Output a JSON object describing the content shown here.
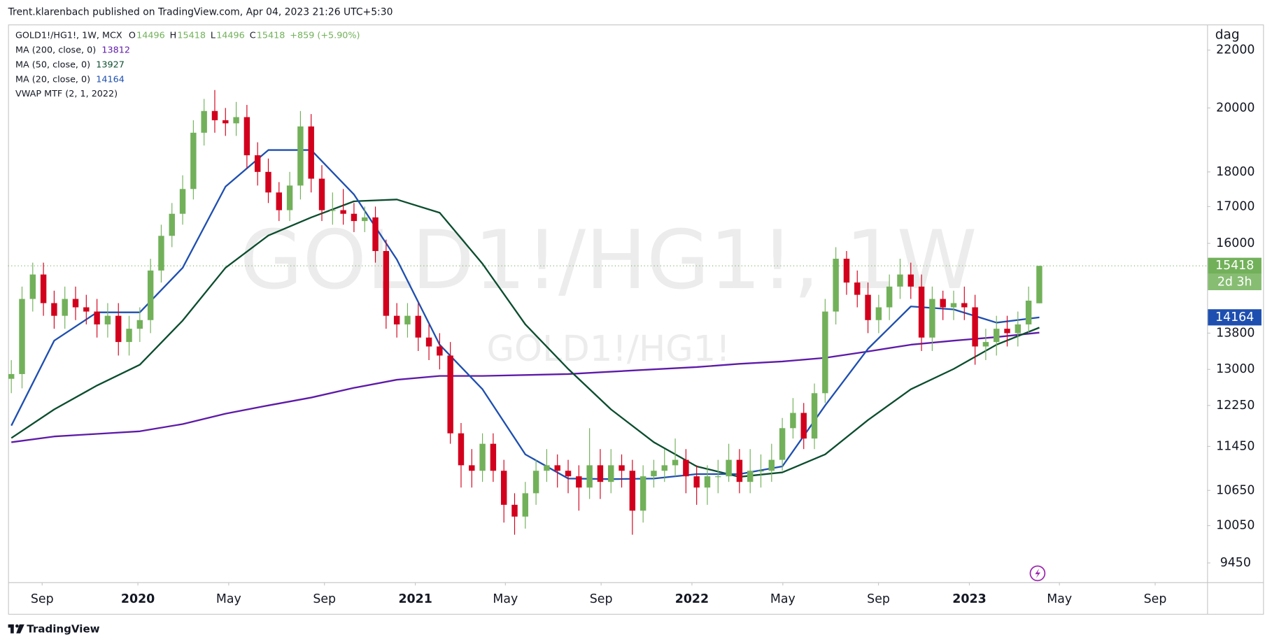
{
  "header": {
    "publisher": "Trent.klarenbach published on TradingView.com, Apr 04, 2023 21:26 UTC+5:30"
  },
  "footer": {
    "brand": "TradingView"
  },
  "chart_data": {
    "type": "candlestick",
    "symbol": "GOLD1!/HG1!, 1W, MCX",
    "watermark": "GOLD1!/HG1!, 1W",
    "watermark_sub": "GOLD1!/HG1!",
    "ohlc_labels": [
      "O",
      "H",
      "L",
      "C"
    ],
    "change": "+859 (+5.90%)",
    "indicator": "VWAP MTF (2, 1, 2022)",
    "countdown": "2d 3h",
    "price_axis_label": "dag",
    "log_scale": true,
    "up_color": "#72b15a",
    "down_color": "#d2001c",
    "xlim": [
      -0.3,
      111.67
    ],
    "ylim": [
      9154,
      22950
    ],
    "yticks": [
      22000,
      20000,
      18000,
      17000,
      16000,
      13800,
      13000,
      12250,
      11450,
      10650,
      10050,
      9450
    ],
    "xticks": [
      {
        "value": 2.88,
        "label": "Sep"
      },
      {
        "value": 11.82,
        "label": "2020"
      },
      {
        "value": 20.3,
        "label": "May"
      },
      {
        "value": 29.24,
        "label": "Sep"
      },
      {
        "value": 37.73,
        "label": "2021"
      },
      {
        "value": 46.14,
        "label": "May"
      },
      {
        "value": 55.08,
        "label": "Sep"
      },
      {
        "value": 63.56,
        "label": "2022"
      },
      {
        "value": 72.05,
        "label": "May"
      },
      {
        "value": 80.98,
        "label": "Sep"
      },
      {
        "value": 89.47,
        "label": "2023"
      },
      {
        "value": 97.88,
        "label": "May"
      },
      {
        "value": 106.82,
        "label": "Sep"
      }
    ],
    "open": [
      12800,
      12900,
      14600,
      15200,
      14500,
      14200,
      14600,
      14400,
      14300,
      14000,
      14200,
      13600,
      13900,
      14100,
      15300,
      16200,
      16800,
      17500,
      19200,
      19900,
      19600,
      19500,
      19700,
      18500,
      18000,
      17400,
      16900,
      17600,
      19400,
      17800,
      16900,
      16900,
      16800,
      16600,
      16700,
      15800,
      14200,
      14000,
      14200,
      13700,
      13500,
      13300,
      11700,
      11100,
      11000,
      11500,
      11000,
      10400,
      10200,
      10600,
      11000,
      11100,
      11000,
      10900,
      10700,
      11100,
      10800,
      11100,
      11000,
      10300,
      10900,
      11000,
      11100,
      11200,
      10900,
      10700,
      10900,
      10900,
      11200,
      10800,
      11000,
      11000,
      11200,
      11800,
      12100,
      11600,
      12500,
      14300,
      15600,
      15000,
      14700,
      14100,
      14400,
      14900,
      15200,
      14900,
      13700,
      14600,
      14400,
      14500,
      14400,
      13500,
      13600,
      13900,
      13800,
      14000,
      14496
    ],
    "high": [
      13200,
      14900,
      15500,
      15500,
      14800,
      14900,
      14900,
      14700,
      14600,
      14500,
      14500,
      14200,
      14400,
      15600,
      16500,
      17100,
      17900,
      19600,
      20300,
      20600,
      20000,
      20200,
      20100,
      18900,
      18400,
      17700,
      18000,
      19900,
      19800,
      18200,
      17400,
      17500,
      17100,
      17000,
      17000,
      16100,
      14500,
      14500,
      14500,
      14000,
      13800,
      13600,
      11900,
      11400,
      11700,
      11700,
      11200,
      10600,
      10800,
      11200,
      11400,
      11300,
      11200,
      11100,
      11800,
      11400,
      11400,
      11300,
      11200,
      11100,
      11200,
      11400,
      11600,
      11400,
      11100,
      11100,
      11200,
      11500,
      11400,
      11400,
      11300,
      11500,
      12000,
      12400,
      12300,
      12700,
      14600,
      15900,
      15800,
      15300,
      15000,
      14700,
      15200,
      15600,
      15500,
      15200,
      14900,
      14800,
      14800,
      14900,
      14700,
      13900,
      14200,
      14200,
      14300,
      14900,
      15418
    ],
    "low": [
      12500,
      12600,
      14300,
      14200,
      13900,
      13900,
      14100,
      14000,
      13700,
      13700,
      13300,
      13300,
      13600,
      13800,
      15000,
      15900,
      16500,
      17200,
      18800,
      19200,
      19100,
      19100,
      18100,
      17600,
      17100,
      16600,
      16600,
      17200,
      17400,
      16600,
      16500,
      16500,
      16300,
      16300,
      15500,
      13900,
      13700,
      13700,
      13400,
      13200,
      13000,
      11500,
      10700,
      10700,
      10800,
      10800,
      10100,
      9900,
      10000,
      10400,
      10800,
      10700,
      10600,
      10300,
      10500,
      10500,
      10600,
      10700,
      9900,
      10100,
      10700,
      10800,
      10900,
      10600,
      10400,
      10400,
      10600,
      10800,
      10600,
      10600,
      10700,
      10800,
      11000,
      11600,
      11400,
      11400,
      12300,
      14000,
      14700,
      14400,
      13800,
      13800,
      14100,
      14600,
      14600,
      13400,
      13400,
      14100,
      14100,
      14100,
      13100,
      13200,
      13300,
      13500,
      13500,
      13800,
      14496
    ],
    "close": [
      12900,
      14600,
      15200,
      14500,
      14200,
      14600,
      14400,
      14300,
      14000,
      14200,
      13600,
      13900,
      14100,
      15300,
      16200,
      16800,
      17500,
      19200,
      19900,
      19600,
      19500,
      19700,
      18500,
      18000,
      17400,
      16900,
      17600,
      19400,
      17800,
      16900,
      16900,
      16800,
      16600,
      16700,
      15800,
      14200,
      14000,
      14200,
      13700,
      13500,
      13300,
      11700,
      11100,
      11000,
      11500,
      11000,
      10400,
      10200,
      10600,
      11000,
      11100,
      11000,
      10900,
      10700,
      11100,
      10800,
      11100,
      11000,
      10300,
      10900,
      11000,
      11100,
      11200,
      10900,
      10700,
      10900,
      10900,
      11200,
      10800,
      11000,
      11000,
      11200,
      11800,
      12100,
      11600,
      12500,
      14300,
      15600,
      15000,
      14700,
      14100,
      14400,
      14900,
      15200,
      14900,
      13700,
      14600,
      14400,
      14500,
      14400,
      13500,
      13600,
      13900,
      13800,
      14000,
      14559,
      15418
    ],
    "lines": [
      {
        "name": "MA (200, close, 0)",
        "color": "#5e1aa8",
        "x": [
          0,
          4,
          8,
          12,
          16,
          20,
          24,
          28,
          32,
          36,
          40,
          44,
          48,
          52,
          56,
          60,
          64,
          68,
          72,
          76,
          80,
          84,
          88,
          92,
          96
        ],
        "values": [
          11530,
          11640,
          11690,
          11740,
          11880,
          12085,
          12250,
          12410,
          12610,
          12780,
          12860,
          12860,
          12880,
          12900,
          12950,
          13000,
          13050,
          13120,
          13170,
          13250,
          13390,
          13540,
          13630,
          13710,
          13812
        ]
      },
      {
        "name": "MA (50, close, 0)",
        "color": "#0b4d2e",
        "x": [
          0,
          4,
          8,
          12,
          16,
          20,
          24,
          28,
          32,
          36,
          40,
          44,
          48,
          52,
          56,
          60,
          64,
          68,
          72,
          76,
          80,
          84,
          88,
          92,
          96
        ],
        "values": [
          11610,
          12170,
          12660,
          13100,
          14090,
          15370,
          16210,
          16700,
          17150,
          17200,
          16830,
          15470,
          14000,
          13010,
          12170,
          11530,
          11080,
          10890,
          10970,
          11300,
          11960,
          12580,
          13010,
          13540,
          13927
        ]
      },
      {
        "name": "MA (20, close, 0)",
        "color": "#1e4fb0",
        "x": [
          0,
          4,
          8,
          12,
          16,
          20,
          24,
          28,
          32,
          36,
          40,
          44,
          48,
          52,
          56,
          60,
          64,
          68,
          72,
          76,
          80,
          84,
          88,
          92,
          96
        ],
        "values": [
          11850,
          13630,
          14280,
          14280,
          15370,
          17570,
          18660,
          18660,
          17340,
          15580,
          13540,
          12580,
          11300,
          10860,
          10850,
          10860,
          10940,
          10940,
          11080,
          12250,
          13450,
          14420,
          14350,
          14040,
          14164
        ]
      }
    ]
  }
}
